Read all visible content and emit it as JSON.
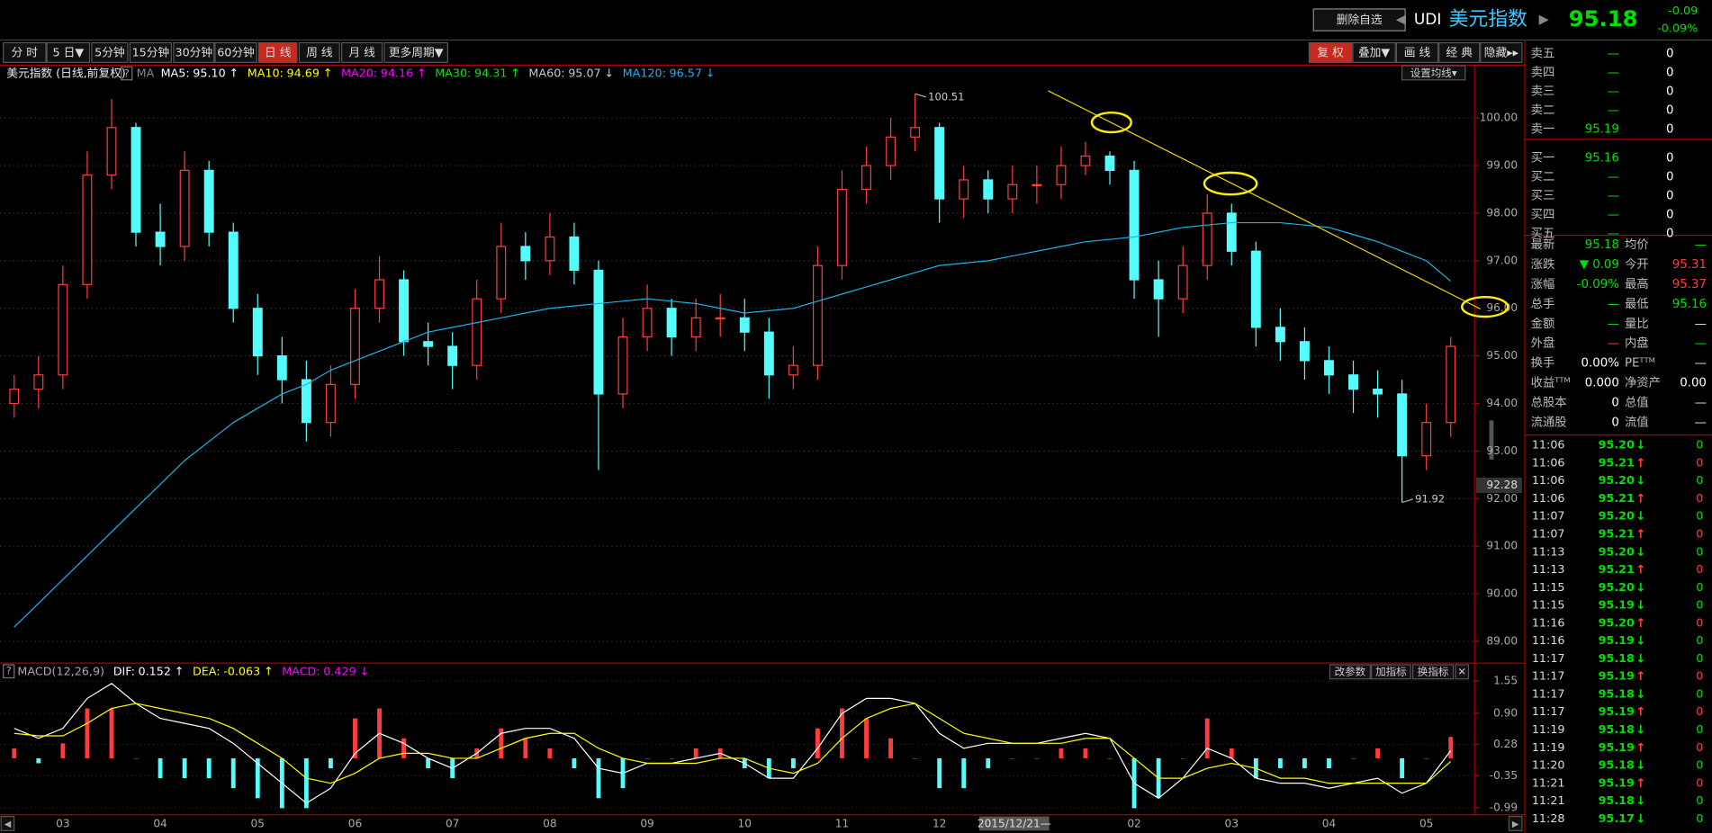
{
  "header": {
    "button": "删除自选",
    "prev": "◀",
    "code": "UDI",
    "name": "美元指数",
    "next": "▶",
    "price": "95.18",
    "change": "-0.09",
    "change_pct": "-0.09%"
  },
  "toolbar": {
    "periods": [
      "分 时",
      "5 日▼",
      "5分钟",
      "15分钟",
      "30分钟",
      "60分钟",
      "日 线",
      "周 线",
      "月 线",
      "更多周期▼"
    ],
    "active": 6,
    "tools": [
      "复 权",
      "叠加▼",
      "画 线",
      "经 典",
      "隐藏▸▸"
    ],
    "tools_active": 0
  },
  "chart_data": [
    {
      "type": "candlestick",
      "title": "美元指数 (日线,前复权)",
      "help": "?",
      "indicator": "MA",
      "button": "设置均线▾",
      "ma": [
        {
          "label": "MA5:",
          "value": "95.10",
          "arrow": "↑",
          "color": "#ffffff"
        },
        {
          "label": "MA10:",
          "value": "94.69",
          "arrow": "↑",
          "color": "#ffff00"
        },
        {
          "label": "MA20:",
          "value": "94.16",
          "arrow": "↑",
          "color": "#ff00ff"
        },
        {
          "label": "MA30:",
          "value": "94.31",
          "arrow": "↑",
          "color": "#00e600"
        },
        {
          "label": "MA60:",
          "value": "95.07",
          "arrow": "↓",
          "color": "#c8c8c8"
        },
        {
          "label": "MA120:",
          "value": "96.57",
          "arrow": "↓",
          "color": "#19b4e6",
          "values": [
            89.3,
            89.8,
            90.3,
            90.8,
            91.3,
            91.8,
            92.3,
            92.8,
            93.2,
            93.6,
            93.9,
            94.2,
            94.4,
            94.7,
            94.9,
            95.1,
            95.3,
            95.5,
            95.6,
            95.7,
            95.8,
            95.9,
            96.0,
            96.05,
            96.1,
            96.15,
            96.2,
            96.15,
            96.1,
            96.0,
            95.9,
            95.95,
            96.0,
            96.15,
            96.3,
            96.45,
            96.6,
            96.75,
            96.9,
            96.95,
            97.0,
            97.1,
            97.2,
            97.3,
            97.4,
            97.45,
            97.5,
            97.6,
            97.7,
            97.75,
            97.8,
            97.8,
            97.8,
            97.75,
            97.7,
            97.55,
            97.4,
            97.2,
            97.0,
            96.57
          ]
        }
      ],
      "categories": [
        null,
        null,
        "03",
        null,
        null,
        null,
        "04",
        null,
        null,
        null,
        "05",
        null,
        null,
        null,
        "06",
        null,
        null,
        null,
        "07",
        null,
        null,
        null,
        "08",
        null,
        null,
        null,
        "09",
        null,
        null,
        null,
        "10",
        null,
        null,
        null,
        "11",
        null,
        null,
        null,
        "12",
        null,
        null,
        null,
        null,
        null,
        null,
        null,
        "02",
        null,
        null,
        null,
        "03",
        null,
        null,
        null,
        "04",
        null,
        null,
        null,
        "05",
        null
      ],
      "open": [
        94.0,
        94.3,
        94.6,
        96.5,
        98.8,
        99.8,
        97.6,
        97.3,
        98.9,
        97.6,
        96.0,
        95.0,
        94.5,
        93.6,
        94.4,
        96.0,
        96.6,
        95.3,
        95.2,
        94.8,
        96.2,
        97.3,
        97.0,
        97.5,
        96.8,
        94.2,
        95.4,
        96.0,
        95.4,
        95.8,
        95.8,
        95.5,
        94.6,
        94.8,
        96.9,
        98.5,
        99.0,
        99.6,
        99.8,
        98.3,
        98.7,
        98.3,
        98.6,
        98.6,
        99.0,
        99.2,
        98.9,
        96.6,
        96.2,
        96.9,
        98.0,
        97.2,
        95.6,
        95.3,
        94.9,
        94.6,
        94.3,
        94.2,
        92.9,
        93.6
      ],
      "high": [
        94.6,
        95.0,
        96.9,
        99.3,
        100.4,
        99.9,
        98.2,
        99.3,
        99.1,
        97.8,
        96.3,
        95.4,
        94.9,
        94.8,
        96.4,
        97.1,
        96.8,
        95.7,
        95.5,
        96.6,
        97.8,
        97.6,
        98.0,
        97.8,
        97.0,
        95.8,
        96.5,
        96.2,
        96.2,
        96.3,
        96.2,
        95.8,
        95.2,
        97.3,
        98.9,
        99.4,
        100.0,
        100.51,
        99.9,
        99.0,
        98.9,
        99.0,
        99.0,
        99.4,
        99.5,
        99.3,
        99.1,
        97.0,
        97.3,
        98.4,
        98.2,
        97.4,
        96.0,
        95.6,
        95.2,
        94.9,
        94.7,
        94.5,
        94.0,
        95.4
      ],
      "low": [
        93.7,
        93.9,
        94.3,
        96.2,
        98.5,
        97.3,
        96.9,
        97.0,
        97.3,
        95.7,
        94.6,
        94.0,
        93.2,
        93.3,
        94.1,
        95.7,
        95.0,
        94.8,
        94.3,
        94.5,
        95.9,
        96.6,
        96.7,
        96.5,
        92.6,
        93.9,
        95.1,
        95.0,
        95.1,
        95.4,
        95.1,
        94.1,
        94.3,
        94.5,
        96.6,
        98.2,
        98.7,
        99.3,
        97.8,
        97.9,
        98.0,
        98.0,
        98.2,
        98.3,
        98.8,
        98.6,
        96.2,
        95.4,
        95.9,
        96.6,
        96.9,
        95.2,
        94.9,
        94.5,
        94.2,
        93.8,
        93.7,
        91.92,
        92.6,
        93.3
      ],
      "close": [
        94.3,
        94.6,
        96.5,
        98.8,
        99.8,
        97.6,
        97.3,
        98.9,
        97.6,
        96.0,
        95.0,
        94.5,
        93.6,
        94.4,
        96.0,
        96.6,
        95.3,
        95.2,
        94.8,
        96.2,
        97.3,
        97.0,
        97.5,
        96.8,
        94.2,
        95.4,
        96.0,
        95.4,
        95.8,
        95.8,
        95.5,
        94.6,
        94.8,
        96.9,
        98.5,
        99.0,
        99.6,
        99.8,
        98.3,
        98.7,
        98.3,
        98.6,
        98.6,
        99.0,
        99.2,
        98.9,
        96.6,
        96.2,
        96.9,
        98.0,
        97.2,
        95.6,
        95.3,
        94.9,
        94.6,
        94.3,
        94.2,
        92.9,
        93.6,
        95.2
      ],
      "up_color": "#ff3c3c",
      "down_color": "#54fcfc",
      "ylim": [
        88.6,
        101.1
      ],
      "yticks": [
        {
          "value": 89,
          "label": "89.00"
        },
        {
          "value": 90,
          "label": "90.00"
        },
        {
          "value": 91,
          "label": "91.00"
        },
        {
          "value": 92,
          "label": "92.00"
        },
        {
          "value": 93,
          "label": "93.00"
        },
        {
          "value": 94,
          "label": "94.00"
        },
        {
          "value": 95,
          "label": "95.00"
        },
        {
          "value": 96,
          "label": "96.00"
        },
        {
          "value": 97,
          "label": "97.00"
        },
        {
          "value": 98,
          "label": "98.00"
        },
        {
          "value": 99,
          "label": "99.00"
        },
        {
          "value": 100,
          "label": "100.00"
        }
      ],
      "grid": true,
      "cursor": {
        "date": "2015/12/21—",
        "price": 92.28
      }
    },
    {
      "type": "macd",
      "title": "MACD(12,26,9)",
      "help": "?",
      "buttons": [
        "改参数",
        "加指标",
        "换指标",
        "✕"
      ],
      "series": [
        {
          "label": "DIF:",
          "color": "#ffffff",
          "arrow": "↑",
          "values": [
            0.6,
            0.4,
            0.6,
            1.2,
            1.5,
            1.1,
            0.8,
            0.7,
            0.6,
            0.3,
            -0.1,
            -0.5,
            -0.9,
            -0.6,
            0.1,
            0.5,
            0.3,
            0.0,
            -0.2,
            0.1,
            0.5,
            0.6,
            0.6,
            0.4,
            -0.2,
            -0.3,
            -0.1,
            -0.1,
            0.0,
            0.1,
            -0.1,
            -0.4,
            -0.4,
            0.2,
            0.9,
            1.2,
            1.2,
            1.1,
            0.5,
            0.2,
            0.3,
            0.3,
            0.3,
            0.4,
            0.5,
            0.4,
            -0.5,
            -0.8,
            -0.4,
            0.2,
            0.0,
            -0.4,
            -0.5,
            -0.5,
            -0.6,
            -0.5,
            -0.4,
            -0.7,
            -0.5,
            0.152
          ]
        },
        {
          "label": "DEA:",
          "color": "#ffff00",
          "arrow": "↑",
          "values": [
            0.5,
            0.45,
            0.45,
            0.7,
            1.0,
            1.1,
            1.0,
            0.9,
            0.8,
            0.6,
            0.3,
            0.0,
            -0.4,
            -0.5,
            -0.3,
            0.0,
            0.1,
            0.1,
            0.0,
            0.0,
            0.2,
            0.4,
            0.5,
            0.5,
            0.2,
            0.0,
            -0.1,
            -0.1,
            -0.1,
            0.0,
            0.0,
            -0.2,
            -0.3,
            -0.1,
            0.4,
            0.8,
            1.0,
            1.1,
            0.8,
            0.5,
            0.4,
            0.3,
            0.3,
            0.3,
            0.4,
            0.4,
            0.0,
            -0.4,
            -0.4,
            -0.2,
            -0.1,
            -0.2,
            -0.4,
            -0.4,
            -0.5,
            -0.5,
            -0.5,
            -0.5,
            -0.5,
            -0.063
          ]
        },
        {
          "label": "MACD:",
          "color": "#ff00ff",
          "arrow": "↓",
          "up_color": "#ff3c3c",
          "down_color": "#54fcfc",
          "values": [
            0.2,
            -0.1,
            0.3,
            1.0,
            1.0,
            0.0,
            -0.4,
            -0.4,
            -0.4,
            -0.6,
            -0.8,
            -1.0,
            -1.0,
            -0.2,
            0.8,
            1.0,
            0.4,
            -0.2,
            -0.4,
            0.2,
            0.6,
            0.4,
            0.2,
            -0.2,
            -0.8,
            -0.6,
            0.0,
            0.0,
            0.2,
            0.2,
            -0.2,
            -0.4,
            -0.2,
            0.6,
            1.0,
            0.8,
            0.4,
            0.0,
            -0.6,
            -0.6,
            -0.2,
            0.0,
            0.0,
            0.2,
            0.2,
            0.0,
            -1.0,
            -0.8,
            0.0,
            0.8,
            0.2,
            -0.4,
            -0.2,
            -0.2,
            -0.2,
            0.0,
            0.2,
            -0.4,
            0.0,
            0.429
          ]
        }
      ],
      "ylim": [
        -1.1,
        1.81
      ],
      "yticks": [
        1.55,
        {
          "value": 0.9,
          "label": "0.90"
        },
        0.28,
        -0.35,
        -0.99
      ]
    }
  ],
  "quote": {
    "book": [
      [
        "卖五",
        "—",
        "0"
      ],
      [
        "卖四",
        "—",
        "0"
      ],
      [
        "卖三",
        "—",
        "0"
      ],
      [
        "卖二",
        "—",
        "0"
      ],
      [
        "卖一",
        "95.19",
        "0"
      ],
      [
        "买一",
        "95.16",
        "0"
      ],
      [
        "买二",
        "—",
        "0"
      ],
      [
        "买三",
        "—",
        "0"
      ],
      [
        "买四",
        "—",
        "0"
      ],
      [
        "买五",
        "—",
        "0"
      ]
    ],
    "stats": [
      [
        "最新",
        "95.18",
        "#00e000",
        "均价",
        "—",
        "#00e000"
      ],
      [
        "涨跌",
        "▼ 0.09",
        "#00e000",
        "今开",
        "95.31",
        "#ff3c3c"
      ],
      [
        "涨幅",
        "-0.09%",
        "#00e000",
        "最高",
        "95.37",
        "#ff3c3c"
      ],
      [
        "总手",
        "—",
        "#00e000",
        "最低",
        "95.16",
        "#00e000"
      ],
      [
        "金额",
        "—",
        "#00e000",
        "量比",
        "—",
        "#dddddd"
      ],
      [
        "外盘",
        "—",
        "#ff3c3c",
        "内盘",
        "—",
        "#00e000"
      ],
      [
        "换手",
        "0.00%",
        "#ffffff",
        "PEᵀᵀᴹ",
        "—",
        "#dddddd"
      ],
      [
        "收益ᵀᵀᴹ",
        "0.000",
        "#ffffff",
        "净资产",
        "0.00",
        "#ffffff"
      ],
      [
        "总股本",
        "0",
        "#ffffff",
        "总值",
        "—",
        "#dddddd"
      ],
      [
        "流通股",
        "0",
        "#ffffff",
        "流值",
        "—",
        "#dddddd"
      ]
    ],
    "trades": [
      [
        "11:06",
        "95.20",
        "↓",
        "0",
        "#00e000"
      ],
      [
        "11:06",
        "95.21",
        "↑",
        "0",
        "#ff3c3c"
      ],
      [
        "11:06",
        "95.20",
        "↓",
        "0",
        "#00e000"
      ],
      [
        "11:06",
        "95.21",
        "↑",
        "0",
        "#ff3c3c"
      ],
      [
        "11:07",
        "95.20",
        "↓",
        "0",
        "#00e000"
      ],
      [
        "11:07",
        "95.21",
        "↑",
        "0",
        "#ff3c3c"
      ],
      [
        "11:13",
        "95.20",
        "↓",
        "0",
        "#00e000"
      ],
      [
        "11:13",
        "95.21",
        "↑",
        "0",
        "#ff3c3c"
      ],
      [
        "11:15",
        "95.20",
        "↓",
        "0",
        "#00e000"
      ],
      [
        "11:15",
        "95.19",
        "↓",
        "0",
        "#00e000"
      ],
      [
        "11:16",
        "95.20",
        "↑",
        "0",
        "#ff3c3c"
      ],
      [
        "11:16",
        "95.19",
        "↓",
        "0",
        "#00e000"
      ],
      [
        "11:17",
        "95.18",
        "↓",
        "0",
        "#00e000"
      ],
      [
        "11:17",
        "95.19",
        "↑",
        "0",
        "#ff3c3c"
      ],
      [
        "11:17",
        "95.18",
        "↓",
        "0",
        "#00e000"
      ],
      [
        "11:17",
        "95.19",
        "↑",
        "0",
        "#ff3c3c"
      ],
      [
        "11:19",
        "95.18",
        "↓",
        "0",
        "#00e000"
      ],
      [
        "11:19",
        "95.19",
        "↑",
        "0",
        "#ff3c3c"
      ],
      [
        "11:20",
        "95.18",
        "↓",
        "0",
        "#00e000"
      ],
      [
        "11:21",
        "95.19",
        "↑",
        "0",
        "#ff3c3c"
      ],
      [
        "11:21",
        "95.18",
        "↓",
        "0",
        "#00e000"
      ],
      [
        "11:28",
        "95.17",
        "↓",
        "0",
        "#00e000"
      ]
    ]
  },
  "footer": {
    "scroll_left": "◀",
    "scroll_right": "▶"
  }
}
